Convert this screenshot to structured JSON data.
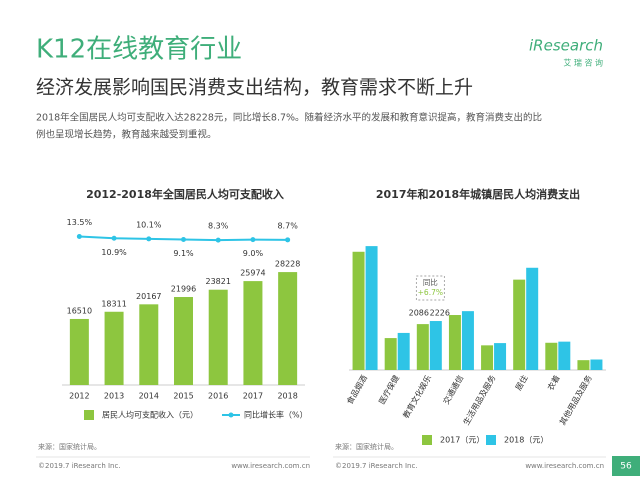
{
  "header": {
    "title": "K12在线教育行业",
    "logo": "iResearch",
    "logo_sub": "艾 瑞 咨 询"
  },
  "subtitle": "经济发展影响国民消费支出结构，教育需求不断上升",
  "paragraph": [
    "2018年全国居民人均可支配收入达28228元，同比增长8.7%。随着经济水平的发展和教育意识提高，教育消费支出的比",
    "例也呈现增长趋势，教育越来越受到重视。"
  ],
  "chart_data": [
    {
      "type": "bar",
      "title": "2012-2018年全国居民人均可支配收入",
      "categories": [
        "2012",
        "2013",
        "2014",
        "2015",
        "2016",
        "2017",
        "2018"
      ],
      "ylim": [
        0,
        40000
      ],
      "y2lim": [
        -200,
        30
      ],
      "series": [
        {
          "name": "居民人均可支配收入（元）",
          "type": "bar",
          "color": "#8dc63f",
          "values": [
            16510,
            18311,
            20167,
            21996,
            23821,
            25974,
            28228
          ]
        },
        {
          "name": "同比增长率（%）",
          "type": "line",
          "axis": "y2",
          "color": "#2ec4e6",
          "values": [
            13.5,
            10.9,
            10.1,
            9.1,
            8.3,
            9.0,
            8.7
          ],
          "value_labels": [
            "13.5%",
            "10.9%",
            "10.1%",
            "9.1%",
            "8.3%",
            "9.0%",
            "8.7%"
          ]
        }
      ],
      "source": "来源：国家统计局。"
    },
    {
      "type": "bar",
      "title": "2017年和2018年城镇居民人均消费支出",
      "categories": [
        "食品烟酒",
        "医疗保健",
        "教育文化娱乐",
        "交通通信",
        "生活用品及服务",
        "居住",
        "衣着",
        "其他用品及服务"
      ],
      "ylim": [
        0,
        7000
      ],
      "series": [
        {
          "name": "2017（元）",
          "type": "bar",
          "color": "#8dc63f",
          "values": [
            5374,
            1451,
            2086,
            2499,
            1121,
            4107,
            1238,
            447
          ],
          "value_labels": [
            null,
            null,
            "2086",
            null,
            null,
            null,
            null,
            null
          ]
        },
        {
          "name": "2018（元）",
          "type": "bar",
          "color": "#2ec4e6",
          "values": [
            5631,
            1685,
            2226,
            2675,
            1223,
            4647,
            1289,
            477
          ],
          "value_labels": [
            null,
            null,
            "2226",
            null,
            null,
            null,
            null,
            null
          ]
        }
      ],
      "annotations": [
        "同比",
        "+6.7%"
      ],
      "source": "来源：国家统计局。"
    }
  ],
  "footer": {
    "copyright": "©2019.7 iResearch Inc.",
    "url": "www.iresearch.com.cn",
    "copyright2": "©2019.7 iResearch Inc.",
    "url2": "www.iresearch.com.cn",
    "page": "56"
  }
}
